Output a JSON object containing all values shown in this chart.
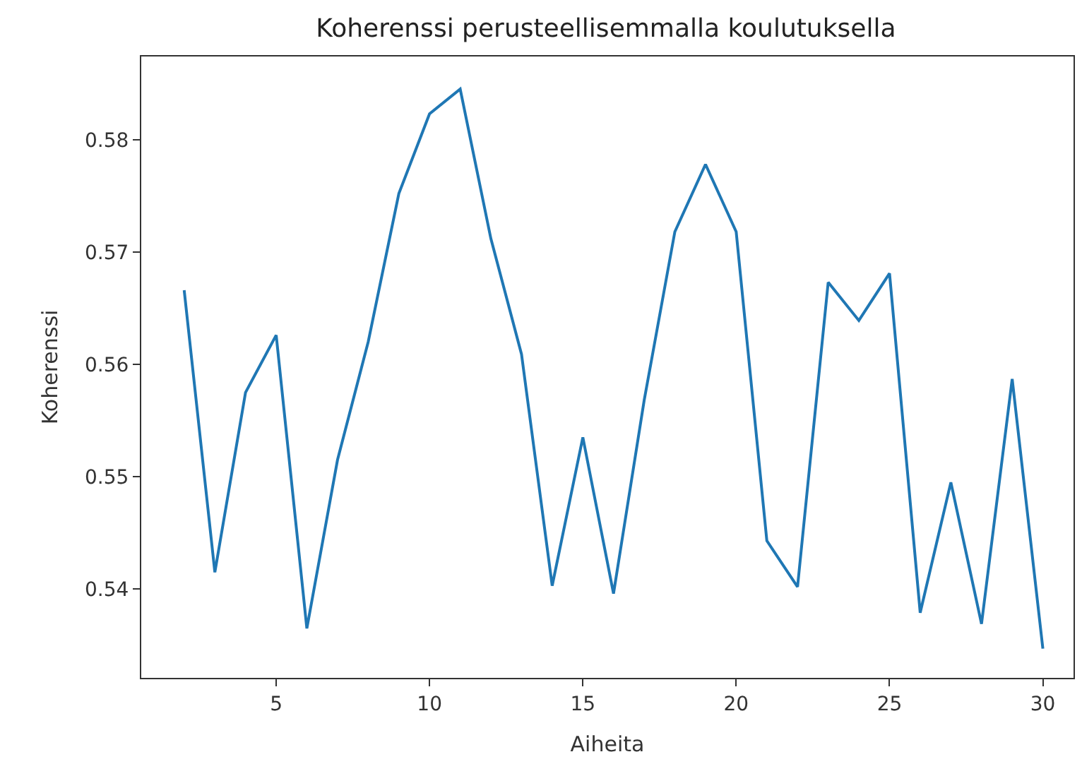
{
  "chart_data": {
    "type": "line",
    "title": "Koherenssi perusteellisemmalla koulutuksella",
    "xlabel": "Aiheita",
    "ylabel": "Koherenssi",
    "x": [
      2,
      3,
      4,
      5,
      6,
      7,
      8,
      9,
      10,
      11,
      12,
      13,
      14,
      15,
      16,
      17,
      18,
      19,
      20,
      21,
      22,
      23,
      24,
      25,
      26,
      27,
      28,
      29,
      30
    ],
    "series": [
      {
        "color": "#1f77b4",
        "values": [
          0.5666,
          0.5415,
          0.5575,
          0.5626,
          0.5365,
          0.5515,
          0.562,
          0.5752,
          0.5823,
          0.5845,
          0.5712,
          0.5609,
          0.5403,
          0.5535,
          0.5396,
          0.5568,
          0.5718,
          0.5778,
          0.5718,
          0.5443,
          0.5402,
          0.5673,
          0.5639,
          0.5681,
          0.5379,
          0.5495,
          0.5369,
          0.5587,
          0.5347
        ]
      }
    ],
    "xlim": [
      0.6,
      31.0
    ],
    "xticks": [
      5,
      10,
      15,
      20,
      25,
      30
    ],
    "ylim": [
      0.5321,
      0.5874
    ],
    "yticks": [
      0.54,
      0.55,
      0.56,
      0.57,
      0.58
    ]
  }
}
